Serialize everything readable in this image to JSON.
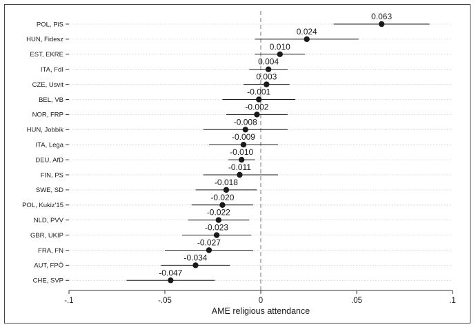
{
  "chart_data": {
    "type": "scatter",
    "subtype": "coefficient-plot-with-confidence-intervals",
    "xlabel": "AME religious attendance",
    "xlim": [
      -0.1,
      0.1
    ],
    "x_ticks": [
      -0.1,
      -0.05,
      0,
      0.05,
      0.1
    ],
    "x_tick_labels": [
      "-.1",
      "-.05",
      "0",
      ".05",
      ".1"
    ],
    "reference_line": 0,
    "grid": "horizontal dotted",
    "colors": {
      "marker": "#1a1a1a",
      "ci_line": "#1a1a1a",
      "grid": "#c8c8c8",
      "frame": "#444444"
    },
    "points": [
      {
        "label": "POL, PiS",
        "value": 0.063,
        "value_label": "0.063",
        "ci": [
          0.038,
          0.088
        ]
      },
      {
        "label": "HUN, Fidesz",
        "value": 0.024,
        "value_label": "0.024",
        "ci": [
          -0.003,
          0.051
        ]
      },
      {
        "label": "EST, EKRE",
        "value": 0.01,
        "value_label": "0.010",
        "ci": [
          -0.003,
          0.023
        ]
      },
      {
        "label": "ITA, FdI",
        "value": 0.004,
        "value_label": "0.004",
        "ci": [
          -0.006,
          0.014
        ]
      },
      {
        "label": "CZE, Usvit",
        "value": 0.003,
        "value_label": "0.003",
        "ci": [
          -0.009,
          0.015
        ]
      },
      {
        "label": "BEL, VB",
        "value": -0.001,
        "value_label": "-0.001",
        "ci": [
          -0.02,
          0.018
        ]
      },
      {
        "label": "NOR, FRP",
        "value": -0.002,
        "value_label": "-0.002",
        "ci": [
          -0.018,
          0.014
        ]
      },
      {
        "label": "HUN, Jobbik",
        "value": -0.008,
        "value_label": "-0.008",
        "ci": [
          -0.03,
          0.014
        ]
      },
      {
        "label": "ITA, Lega",
        "value": -0.009,
        "value_label": "-0.009",
        "ci": [
          -0.027,
          0.009
        ]
      },
      {
        "label": "DEU, AfD",
        "value": -0.01,
        "value_label": "-0.010",
        "ci": [
          -0.017,
          -0.003
        ]
      },
      {
        "label": "FIN, PS",
        "value": -0.011,
        "value_label": "-0.011",
        "ci": [
          -0.03,
          0.009
        ]
      },
      {
        "label": "SWE, SD",
        "value": -0.018,
        "value_label": "-0.018",
        "ci": [
          -0.034,
          -0.002
        ]
      },
      {
        "label": "POL, Kukiz'15",
        "value": -0.02,
        "value_label": "-0.020",
        "ci": [
          -0.036,
          -0.004
        ]
      },
      {
        "label": "NLD, PVV",
        "value": -0.022,
        "value_label": "-0.022",
        "ci": [
          -0.038,
          -0.006
        ]
      },
      {
        "label": "GBR, UKIP",
        "value": -0.023,
        "value_label": "-0.023",
        "ci": [
          -0.041,
          -0.005
        ]
      },
      {
        "label": "FRA, FN",
        "value": -0.027,
        "value_label": "-0.027",
        "ci": [
          -0.05,
          -0.004
        ]
      },
      {
        "label": "AUT, FPÖ",
        "value": -0.034,
        "value_label": "-0.034",
        "ci": [
          -0.052,
          -0.016
        ]
      },
      {
        "label": "CHE, SVP",
        "value": -0.047,
        "value_label": "-0.047",
        "ci": [
          -0.07,
          -0.024
        ]
      }
    ]
  }
}
